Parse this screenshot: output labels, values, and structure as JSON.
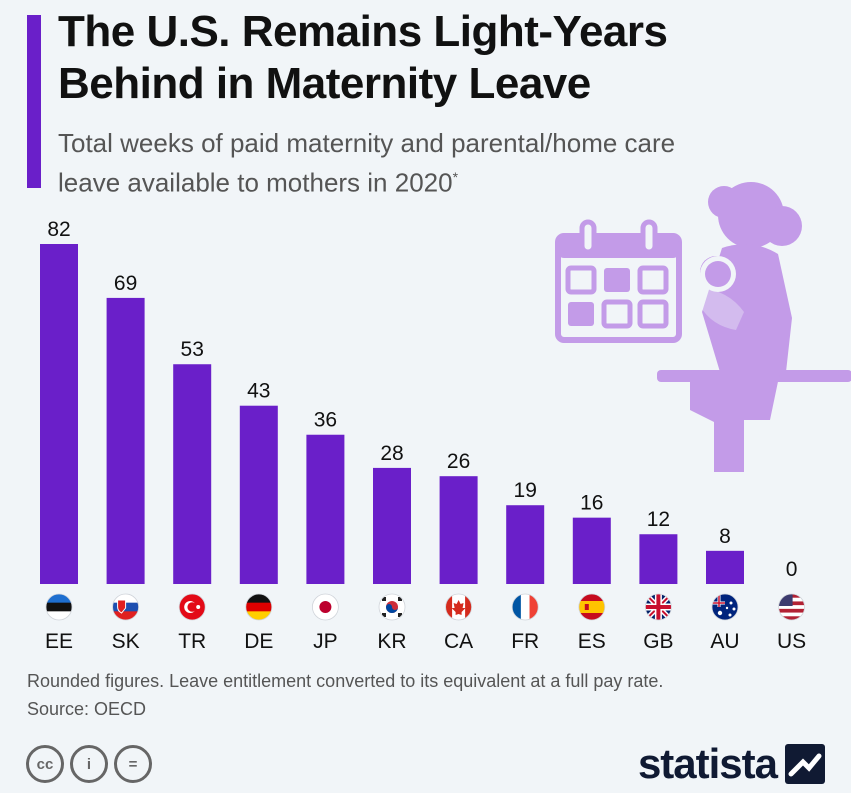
{
  "chart_data": {
    "type": "bar",
    "title_line1": "The U.S. Remains Light-Years",
    "title_line2": "Behind in Maternity Leave",
    "subtitle_line1": "Total weeks of paid maternity and parental/home care",
    "subtitle_line2": "leave available to mothers in 2020",
    "subtitle_mark": "*",
    "categories": [
      "EE",
      "SK",
      "TR",
      "DE",
      "JP",
      "KR",
      "CA",
      "FR",
      "ES",
      "GB",
      "AU",
      "US"
    ],
    "values": [
      82,
      69,
      53,
      43,
      36,
      28,
      26,
      19,
      16,
      12,
      8,
      0
    ],
    "ylim": [
      0,
      82
    ],
    "xlabel": "",
    "ylabel": "",
    "grid": false,
    "bar_color": "#6a1fc9"
  },
  "footnote": {
    "line1": "Rounded figures. Leave entitlement converted to its equivalent at a full pay rate.",
    "line2": "Source: OECD"
  },
  "license_icons": [
    "cc-icon",
    "person-icon",
    "equals-icon"
  ],
  "license_icon_glyphs": [
    "cc",
    "i",
    "="
  ],
  "logo": {
    "text": "statista"
  },
  "illustration": {
    "icon": "mother-with-baby-calendar-illustration",
    "color": "#c39be8"
  }
}
